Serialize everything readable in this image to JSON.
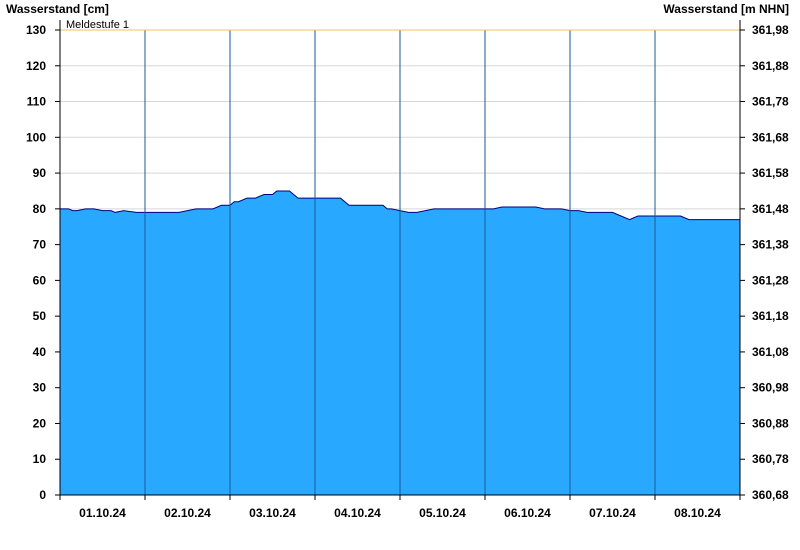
{
  "chart_data": {
    "type": "area",
    "ylabel_left": "Wasserstand [cm]",
    "ylabel_right": "Wasserstand [m NHN]",
    "ylim": [
      0,
      130
    ],
    "yticks_left": [
      "0",
      "10",
      "20",
      "30",
      "40",
      "50",
      "60",
      "70",
      "80",
      "90",
      "100",
      "110",
      "120",
      "130"
    ],
    "yticks_right": [
      "360,68",
      "360,78",
      "360,88",
      "360,98",
      "361,08",
      "361,18",
      "361,28",
      "361,38",
      "361,48",
      "361,58",
      "361,68",
      "361,78",
      "361,88",
      "361,98"
    ],
    "xlim": [
      0,
      8
    ],
    "xtick_labels": [
      "01.10.24",
      "02.10.24",
      "03.10.24",
      "04.10.24",
      "05.10.24",
      "06.10.24",
      "07.10.24",
      "08.10.24"
    ],
    "threshold": {
      "label": "Meldestufe 1",
      "value": 130,
      "color": "#f0c060"
    },
    "grid": true,
    "colors": {
      "fill": "#29a8ff",
      "line": "#000080",
      "grid": "#d8d8d8",
      "day_separator": "#1a5a90"
    },
    "series": [
      {
        "x": [
          0.0,
          0.1,
          0.15,
          0.2,
          0.3,
          0.4,
          0.5,
          0.6,
          0.65,
          0.75,
          0.9,
          1.0,
          1.2,
          1.4,
          1.6,
          1.7,
          1.8,
          1.9,
          2.0,
          2.05,
          2.1,
          2.2,
          2.3,
          2.4,
          2.5,
          2.55,
          2.7,
          2.8,
          2.9,
          3.0,
          3.1,
          3.2,
          3.3,
          3.35,
          3.4,
          3.5,
          3.6,
          3.7,
          3.8,
          3.85,
          3.9,
          4.0,
          4.1,
          4.2,
          4.3,
          4.4,
          4.5,
          4.6,
          4.7,
          4.8,
          4.9,
          5.0,
          5.1,
          5.2,
          5.3,
          5.4,
          5.5,
          5.6,
          5.7,
          5.8,
          5.9,
          6.0,
          6.1,
          6.2,
          6.3,
          6.4,
          6.5,
          6.6,
          6.7,
          6.8,
          6.9,
          7.0,
          7.1,
          7.2,
          7.3,
          7.4,
          7.5,
          7.6,
          7.7,
          7.8,
          7.9,
          8.0
        ],
        "values": [
          80,
          80,
          79.5,
          79.5,
          80,
          80,
          79.5,
          79.5,
          79,
          79.5,
          79,
          79,
          79,
          79,
          80,
          80,
          80,
          81,
          81,
          82,
          82,
          83,
          83,
          84,
          84,
          85,
          85,
          83,
          83,
          83,
          83,
          83,
          83,
          82,
          81,
          81,
          81,
          81,
          81,
          80,
          80,
          79.5,
          79,
          79,
          79.5,
          80,
          80,
          80,
          80,
          80,
          80,
          80,
          80,
          80.5,
          80.5,
          80.5,
          80.5,
          80.5,
          80,
          80,
          80,
          79.5,
          79.5,
          79,
          79,
          79,
          79,
          78,
          77,
          78,
          78,
          78,
          78,
          78,
          78,
          77,
          77,
          77,
          77,
          77,
          77,
          77
        ]
      }
    ]
  }
}
